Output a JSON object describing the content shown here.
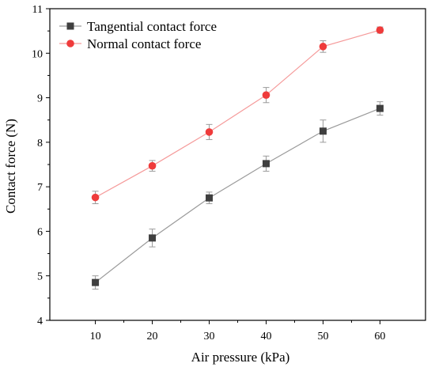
{
  "chart_data": {
    "type": "line",
    "title": "",
    "xlabel": "Air pressure (kPa)",
    "ylabel": "Contact force (N)",
    "x": [
      10,
      20,
      30,
      40,
      50,
      60
    ],
    "xlim": [
      2,
      68
    ],
    "ylim": [
      4,
      11
    ],
    "xticks": [
      10,
      20,
      30,
      40,
      50,
      60
    ],
    "yticks": [
      4,
      5,
      6,
      7,
      8,
      9,
      10,
      11
    ],
    "grid": false,
    "legend_position": "top-left",
    "series": [
      {
        "name": "Tangential contact force",
        "marker": "square",
        "color": "#3f3f3f",
        "line_color": "#9a9a9a",
        "values": [
          4.85,
          5.85,
          6.75,
          7.52,
          8.25,
          8.76
        ],
        "errors": [
          0.15,
          0.2,
          0.13,
          0.17,
          0.25,
          0.15
        ]
      },
      {
        "name": "Normal contact force",
        "marker": "circle",
        "color": "#ef3b3b",
        "line_color": "#f59a9a",
        "values": [
          6.76,
          7.47,
          8.23,
          9.06,
          10.15,
          10.52
        ],
        "errors": [
          0.14,
          0.12,
          0.17,
          0.17,
          0.13,
          0.07
        ]
      }
    ]
  }
}
